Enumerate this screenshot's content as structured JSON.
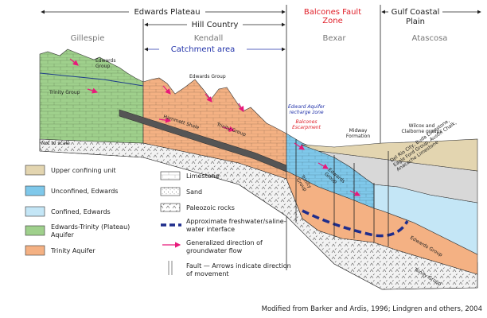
{
  "header": {
    "regions": [
      [
        "Edwards Plateau"
      ],
      [
        "Hill Country"
      ],
      [
        "Balcones Fault",
        "Zone"
      ],
      [
        "Gulf Coastal",
        "Plain"
      ]
    ],
    "counties": [
      "Gillespie",
      "Kendall",
      "Bexar",
      "Atascosa"
    ],
    "catchment": "Catchment area"
  },
  "section_labels": [
    [
      "Edwards",
      "Group"
    ],
    [
      "Trinity Group"
    ],
    [
      "Edwards Group"
    ],
    [
      "Hammett Shale"
    ],
    [
      "Trinity Group"
    ],
    [
      "Edward Aquifer",
      "recharge zone"
    ],
    [
      "Balcones",
      "Escarpment"
    ],
    [
      "Midway",
      "Formation"
    ],
    [
      "Wilcox and",
      "Claiborne groups"
    ],
    [
      "Del Rio City, Buda Limestone,",
      "Eagle Ford Group, Austin Chalk,",
      "Anacacho Limestone"
    ],
    [
      "Edwards",
      "Group"
    ],
    [
      "Trinity",
      "Group"
    ],
    [
      "Edwards Group"
    ],
    [
      "Trinity Group"
    ],
    [
      "Not to scale"
    ]
  ],
  "legend": [
    [
      "Upper confining unit"
    ],
    [
      "Unconfined, Edwards"
    ],
    [
      "Confined, Edwards"
    ],
    [
      "Edwards-Trinity (Plateau)",
      "Aquifer"
    ],
    [
      "Trinity Aquifer"
    ],
    [
      "Limestone"
    ],
    [
      "Sand"
    ],
    [
      "Paleozoic rocks"
    ],
    [
      "Approximate freshwater/saline-",
      "water interface"
    ],
    [
      "Generalized direction of",
      "groundwater flow"
    ],
    [
      "Fault — Arrows indicate direction",
      "of movement"
    ]
  ],
  "credit": "Modified from Barker and Ardis, 1996; Lindgren and others, 2004"
}
